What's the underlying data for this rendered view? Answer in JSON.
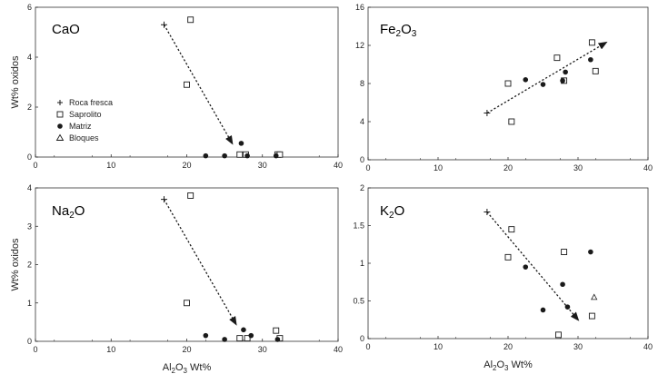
{
  "colors": {
    "ink": "#1a1a1a",
    "frame": "#333333",
    "background": "#ffffff"
  },
  "legend": {
    "items": [
      {
        "label": "Roca fresca",
        "marker": "plus"
      },
      {
        "label": "Saprolito",
        "marker": "open-square"
      },
      {
        "label": "Matriz",
        "marker": "filled-circle"
      },
      {
        "label": "Bloques",
        "marker": "open-triangle"
      }
    ]
  },
  "chart_data": [
    {
      "type": "scatter",
      "title_main": "CaO",
      "title_sub": "",
      "xlim": [
        0,
        40
      ],
      "ylim": [
        0,
        6
      ],
      "xticks": [
        "0",
        "10",
        "20",
        "30",
        "40"
      ],
      "yticks": [
        "0",
        "2",
        "4",
        "6"
      ],
      "ylabel": "Wt% oxidos",
      "xlabel": "",
      "series": [
        {
          "name": "Roca fresca",
          "marker": "plus",
          "points": [
            [
              17.0,
              5.3
            ]
          ]
        },
        {
          "name": "Saprolito",
          "marker": "open-square",
          "points": [
            [
              20.5,
              5.5
            ],
            [
              20.0,
              2.9
            ],
            [
              27.0,
              0.1
            ],
            [
              27.8,
              0.1
            ],
            [
              32.0,
              0.1
            ],
            [
              32.3,
              0.1
            ]
          ]
        },
        {
          "name": "Matriz",
          "marker": "filled-circle",
          "points": [
            [
              22.5,
              0.05
            ],
            [
              25.0,
              0.05
            ],
            [
              27.2,
              0.55
            ],
            [
              28.0,
              0.05
            ],
            [
              31.8,
              0.05
            ]
          ]
        },
        {
          "name": "Bloques",
          "marker": "open-triangle",
          "points": []
        }
      ],
      "trend_arrow": {
        "from": [
          17.0,
          5.3
        ],
        "to": [
          26.0,
          0.55
        ]
      }
    },
    {
      "type": "scatter",
      "title_main": "Fe",
      "title_sub": "2",
      "title_main2": "O",
      "title_sub2": "3",
      "xlim": [
        0,
        40
      ],
      "ylim": [
        0,
        16
      ],
      "xticks": [
        "0",
        "10",
        "20",
        "30",
        "40"
      ],
      "yticks": [
        "0",
        "4",
        "8",
        "12",
        "16"
      ],
      "ylabel": "",
      "xlabel": "",
      "series": [
        {
          "name": "Roca fresca",
          "marker": "plus",
          "points": [
            [
              17.0,
              4.9
            ]
          ]
        },
        {
          "name": "Saprolito",
          "marker": "open-square",
          "points": [
            [
              20.0,
              8.0
            ],
            [
              20.5,
              4.0
            ],
            [
              27.0,
              10.7
            ],
            [
              28.0,
              8.3
            ],
            [
              32.0,
              12.3
            ],
            [
              32.5,
              9.3
            ]
          ]
        },
        {
          "name": "Matriz",
          "marker": "filled-circle",
          "points": [
            [
              22.5,
              8.4
            ],
            [
              25.0,
              7.9
            ],
            [
              27.8,
              8.3
            ],
            [
              28.2,
              9.2
            ],
            [
              31.8,
              10.5
            ]
          ]
        },
        {
          "name": "Bloques",
          "marker": "open-triangle",
          "points": []
        }
      ],
      "trend_arrow": {
        "from": [
          17.0,
          4.9
        ],
        "to": [
          34.0,
          12.3
        ]
      }
    },
    {
      "type": "scatter",
      "title_main": "Na",
      "title_sub": "2",
      "title_main2": "O",
      "title_sub2": "",
      "xlim": [
        0,
        40
      ],
      "ylim": [
        0,
        4
      ],
      "xticks": [
        "0",
        "10",
        "20",
        "30",
        "40"
      ],
      "yticks": [
        "0",
        "1",
        "2",
        "3",
        "4"
      ],
      "ylabel": "Wt% oxidos",
      "xlabel_main": "Al",
      "xlabel_sub": "2",
      "xlabel_main2": "O",
      "xlabel_sub2": "3",
      "xlabel_tail": " Wt%",
      "series": [
        {
          "name": "Roca fresca",
          "marker": "plus",
          "points": [
            [
              17.0,
              3.7
            ]
          ]
        },
        {
          "name": "Saprolito",
          "marker": "open-square",
          "points": [
            [
              20.5,
              3.8
            ],
            [
              20.0,
              1.0
            ],
            [
              27.0,
              0.08
            ],
            [
              28.0,
              0.08
            ],
            [
              31.8,
              0.28
            ],
            [
              32.3,
              0.08
            ]
          ]
        },
        {
          "name": "Matriz",
          "marker": "filled-circle",
          "points": [
            [
              22.5,
              0.15
            ],
            [
              25.0,
              0.05
            ],
            [
              27.5,
              0.3
            ],
            [
              28.5,
              0.15
            ],
            [
              32.0,
              0.05
            ]
          ]
        },
        {
          "name": "Bloques",
          "marker": "open-triangle",
          "points": []
        }
      ],
      "trend_arrow": {
        "from": [
          17.0,
          3.7
        ],
        "to": [
          26.5,
          0.45
        ]
      }
    },
    {
      "type": "scatter",
      "title_main": "K",
      "title_sub": "2",
      "title_main2": "O",
      "title_sub2": "",
      "xlim": [
        0,
        40
      ],
      "ylim": [
        0,
        2
      ],
      "xticks": [
        "0",
        "10",
        "20",
        "30",
        "40"
      ],
      "yticks": [
        "0",
        "0.5",
        "1",
        "1.5",
        "2"
      ],
      "ylabel": "",
      "xlabel_main": "Al",
      "xlabel_sub": "2",
      "xlabel_main2": "O",
      "xlabel_sub2": "3",
      "xlabel_tail": " Wt%",
      "series": [
        {
          "name": "Roca fresca",
          "marker": "plus",
          "points": [
            [
              17.0,
              1.68
            ]
          ]
        },
        {
          "name": "Saprolito",
          "marker": "open-square",
          "points": [
            [
              20.5,
              1.45
            ],
            [
              20.0,
              1.08
            ],
            [
              27.2,
              0.05
            ],
            [
              28.0,
              1.15
            ],
            [
              32.0,
              0.3
            ]
          ]
        },
        {
          "name": "Matriz",
          "marker": "filled-circle",
          "points": [
            [
              22.5,
              0.95
            ],
            [
              25.0,
              0.38
            ],
            [
              27.8,
              0.72
            ],
            [
              28.5,
              0.42
            ],
            [
              31.8,
              1.15
            ]
          ]
        },
        {
          "name": "Bloques",
          "marker": "open-triangle",
          "points": [
            [
              32.3,
              0.55
            ]
          ]
        }
      ],
      "trend_arrow": {
        "from": [
          17.0,
          1.68
        ],
        "to": [
          30.0,
          0.25
        ]
      }
    }
  ]
}
